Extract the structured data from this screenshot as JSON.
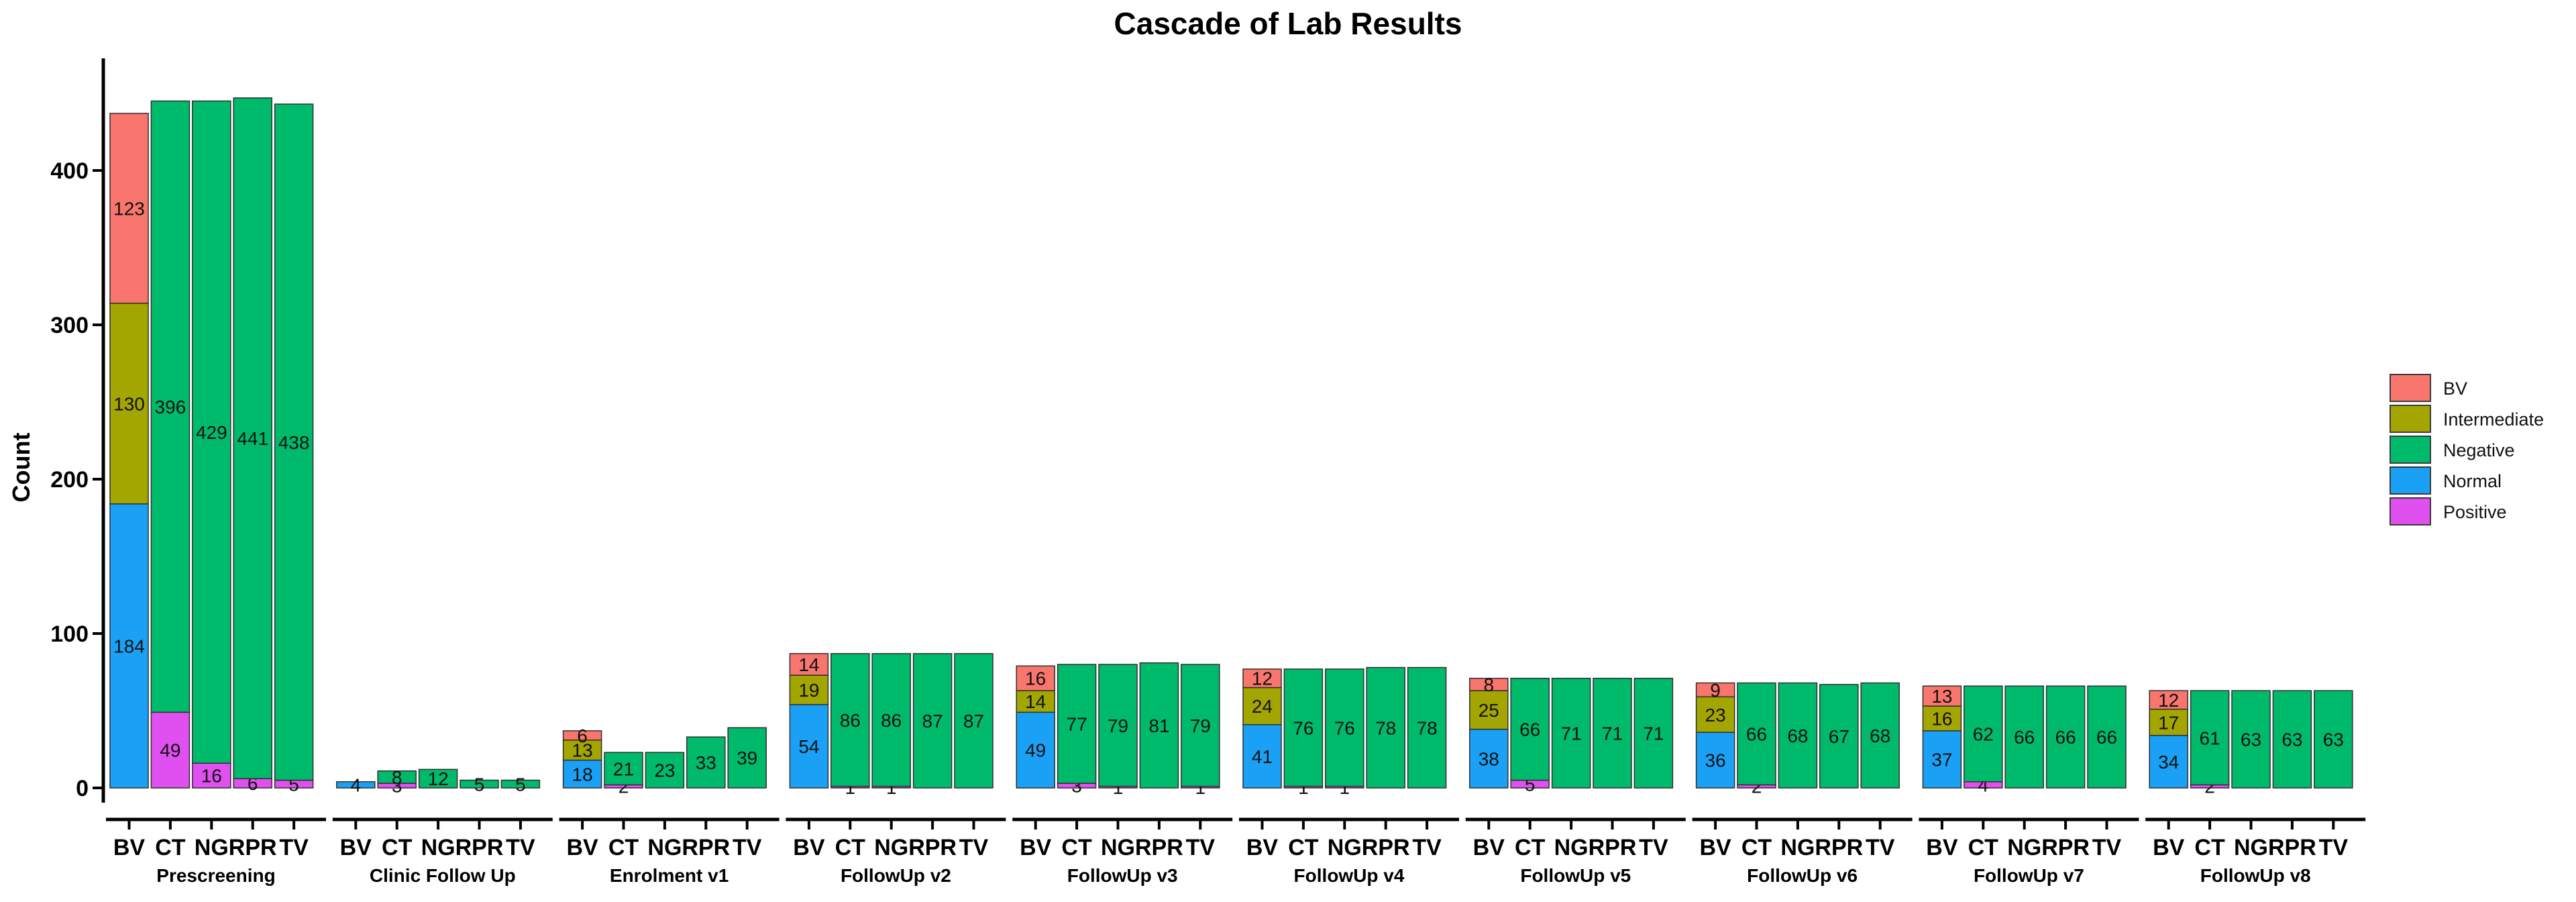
{
  "chart_data": {
    "type": "bar",
    "stacked": true,
    "title": "Cascade of Lab Results",
    "xlabel": "",
    "ylabel": "Count",
    "ylim": [
      0,
      450
    ],
    "yticks": [
      0,
      100,
      200,
      300,
      400
    ],
    "grid": false,
    "legend_position": "right",
    "bar_categories": [
      "BV",
      "CT",
      "NG",
      "RPR",
      "TV"
    ],
    "stack_order": [
      "Positive",
      "Normal",
      "Negative",
      "Intermediate",
      "BV"
    ],
    "colors": {
      "BV": "#F8766D",
      "Intermediate": "#A3A500",
      "Negative": "#00BA6C",
      "Normal": "#1AA1F5",
      "Positive": "#E04FEF"
    },
    "groups": [
      {
        "name": "Prescreening",
        "bars": [
          {
            "category": "BV",
            "segments": [
              {
                "series": "Normal",
                "value": 184
              },
              {
                "series": "Intermediate",
                "value": 130
              },
              {
                "series": "BV",
                "value": 123
              }
            ]
          },
          {
            "category": "CT",
            "segments": [
              {
                "series": "Positive",
                "value": 49
              },
              {
                "series": "Negative",
                "value": 396
              }
            ]
          },
          {
            "category": "NG",
            "segments": [
              {
                "series": "Positive",
                "value": 16
              },
              {
                "series": "Negative",
                "value": 429
              }
            ]
          },
          {
            "category": "RPR",
            "segments": [
              {
                "series": "Positive",
                "value": 6
              },
              {
                "series": "Negative",
                "value": 441
              }
            ]
          },
          {
            "category": "TV",
            "segments": [
              {
                "series": "Positive",
                "value": 5
              },
              {
                "series": "Negative",
                "value": 438
              }
            ]
          }
        ]
      },
      {
        "name": "Clinic Follow Up",
        "bars": [
          {
            "category": "BV",
            "segments": [
              {
                "series": "Normal",
                "value": 4
              }
            ]
          },
          {
            "category": "CT",
            "segments": [
              {
                "series": "Positive",
                "value": 3
              },
              {
                "series": "Negative",
                "value": 8
              }
            ]
          },
          {
            "category": "NG",
            "segments": [
              {
                "series": "Negative",
                "value": 12
              }
            ]
          },
          {
            "category": "RPR",
            "segments": [
              {
                "series": "Negative",
                "value": 5
              }
            ]
          },
          {
            "category": "TV",
            "segments": [
              {
                "series": "Negative",
                "value": 5
              }
            ]
          }
        ]
      },
      {
        "name": "Enrolment v1",
        "bars": [
          {
            "category": "BV",
            "segments": [
              {
                "series": "Normal",
                "value": 18
              },
              {
                "series": "Intermediate",
                "value": 13
              },
              {
                "series": "BV",
                "value": 6
              }
            ]
          },
          {
            "category": "CT",
            "segments": [
              {
                "series": "Positive",
                "value": 2
              },
              {
                "series": "Negative",
                "value": 21
              }
            ]
          },
          {
            "category": "NG",
            "segments": [
              {
                "series": "Negative",
                "value": 23
              }
            ]
          },
          {
            "category": "RPR",
            "segments": [
              {
                "series": "Negative",
                "value": 33
              }
            ]
          },
          {
            "category": "TV",
            "segments": [
              {
                "series": "Negative",
                "value": 39
              }
            ]
          }
        ]
      },
      {
        "name": "FollowUp v2",
        "bars": [
          {
            "category": "BV",
            "segments": [
              {
                "series": "Normal",
                "value": 54
              },
              {
                "series": "Intermediate",
                "value": 19
              },
              {
                "series": "BV",
                "value": 14
              }
            ]
          },
          {
            "category": "CT",
            "segments": [
              {
                "series": "Positive",
                "value": 1
              },
              {
                "series": "Negative",
                "value": 86
              }
            ]
          },
          {
            "category": "NG",
            "segments": [
              {
                "series": "Positive",
                "value": 1
              },
              {
                "series": "Negative",
                "value": 86
              }
            ]
          },
          {
            "category": "RPR",
            "segments": [
              {
                "series": "Negative",
                "value": 87
              }
            ]
          },
          {
            "category": "TV",
            "segments": [
              {
                "series": "Negative",
                "value": 87
              }
            ]
          }
        ]
      },
      {
        "name": "FollowUp v3",
        "bars": [
          {
            "category": "BV",
            "segments": [
              {
                "series": "Normal",
                "value": 49
              },
              {
                "series": "Intermediate",
                "value": 14
              },
              {
                "series": "BV",
                "value": 16
              }
            ]
          },
          {
            "category": "CT",
            "segments": [
              {
                "series": "Positive",
                "value": 3
              },
              {
                "series": "Negative",
                "value": 77
              }
            ]
          },
          {
            "category": "NG",
            "segments": [
              {
                "series": "Positive",
                "value": 1
              },
              {
                "series": "Negative",
                "value": 79
              }
            ]
          },
          {
            "category": "RPR",
            "segments": [
              {
                "series": "Negative",
                "value": 81
              }
            ]
          },
          {
            "category": "TV",
            "segments": [
              {
                "series": "Positive",
                "value": 1
              },
              {
                "series": "Negative",
                "value": 79
              }
            ]
          }
        ]
      },
      {
        "name": "FollowUp v4",
        "bars": [
          {
            "category": "BV",
            "segments": [
              {
                "series": "Normal",
                "value": 41
              },
              {
                "series": "Intermediate",
                "value": 24
              },
              {
                "series": "BV",
                "value": 12
              }
            ]
          },
          {
            "category": "CT",
            "segments": [
              {
                "series": "Positive",
                "value": 1
              },
              {
                "series": "Negative",
                "value": 76
              }
            ]
          },
          {
            "category": "NG",
            "segments": [
              {
                "series": "Positive",
                "value": 1
              },
              {
                "series": "Negative",
                "value": 76
              }
            ]
          },
          {
            "category": "RPR",
            "segments": [
              {
                "series": "Negative",
                "value": 78
              }
            ]
          },
          {
            "category": "TV",
            "segments": [
              {
                "series": "Negative",
                "value": 78
              }
            ]
          }
        ]
      },
      {
        "name": "FollowUp v5",
        "bars": [
          {
            "category": "BV",
            "segments": [
              {
                "series": "Normal",
                "value": 38
              },
              {
                "series": "Intermediate",
                "value": 25
              },
              {
                "series": "BV",
                "value": 8
              }
            ]
          },
          {
            "category": "CT",
            "segments": [
              {
                "series": "Positive",
                "value": 5
              },
              {
                "series": "Negative",
                "value": 66
              }
            ]
          },
          {
            "category": "NG",
            "segments": [
              {
                "series": "Negative",
                "value": 71
              }
            ]
          },
          {
            "category": "RPR",
            "segments": [
              {
                "series": "Negative",
                "value": 71
              }
            ]
          },
          {
            "category": "TV",
            "segments": [
              {
                "series": "Negative",
                "value": 71
              }
            ]
          }
        ]
      },
      {
        "name": "FollowUp v6",
        "bars": [
          {
            "category": "BV",
            "segments": [
              {
                "series": "Normal",
                "value": 36
              },
              {
                "series": "Intermediate",
                "value": 23
              },
              {
                "series": "BV",
                "value": 9
              }
            ]
          },
          {
            "category": "CT",
            "segments": [
              {
                "series": "Positive",
                "value": 2
              },
              {
                "series": "Negative",
                "value": 66
              }
            ]
          },
          {
            "category": "NG",
            "segments": [
              {
                "series": "Negative",
                "value": 68
              }
            ]
          },
          {
            "category": "RPR",
            "segments": [
              {
                "series": "Negative",
                "value": 67
              }
            ]
          },
          {
            "category": "TV",
            "segments": [
              {
                "series": "Negative",
                "value": 68
              }
            ]
          }
        ]
      },
      {
        "name": "FollowUp v7",
        "bars": [
          {
            "category": "BV",
            "segments": [
              {
                "series": "Normal",
                "value": 37
              },
              {
                "series": "Intermediate",
                "value": 16
              },
              {
                "series": "BV",
                "value": 13
              }
            ]
          },
          {
            "category": "CT",
            "segments": [
              {
                "series": "Positive",
                "value": 4
              },
              {
                "series": "Negative",
                "value": 62
              }
            ]
          },
          {
            "category": "NG",
            "segments": [
              {
                "series": "Negative",
                "value": 66
              }
            ]
          },
          {
            "category": "RPR",
            "segments": [
              {
                "series": "Negative",
                "value": 66
              }
            ]
          },
          {
            "category": "TV",
            "segments": [
              {
                "series": "Negative",
                "value": 66
              }
            ]
          }
        ]
      },
      {
        "name": "FollowUp v8",
        "bars": [
          {
            "category": "BV",
            "segments": [
              {
                "series": "Normal",
                "value": 34
              },
              {
                "series": "Intermediate",
                "value": 17
              },
              {
                "series": "BV",
                "value": 12
              }
            ]
          },
          {
            "category": "CT",
            "segments": [
              {
                "series": "Positive",
                "value": 2
              },
              {
                "series": "Negative",
                "value": 61
              }
            ]
          },
          {
            "category": "NG",
            "segments": [
              {
                "series": "Negative",
                "value": 63
              }
            ]
          },
          {
            "category": "RPR",
            "segments": [
              {
                "series": "Negative",
                "value": 63
              }
            ]
          },
          {
            "category": "TV",
            "segments": [
              {
                "series": "Negative",
                "value": 63
              }
            ]
          }
        ]
      }
    ],
    "legend": [
      "BV",
      "Intermediate",
      "Negative",
      "Normal",
      "Positive"
    ]
  }
}
